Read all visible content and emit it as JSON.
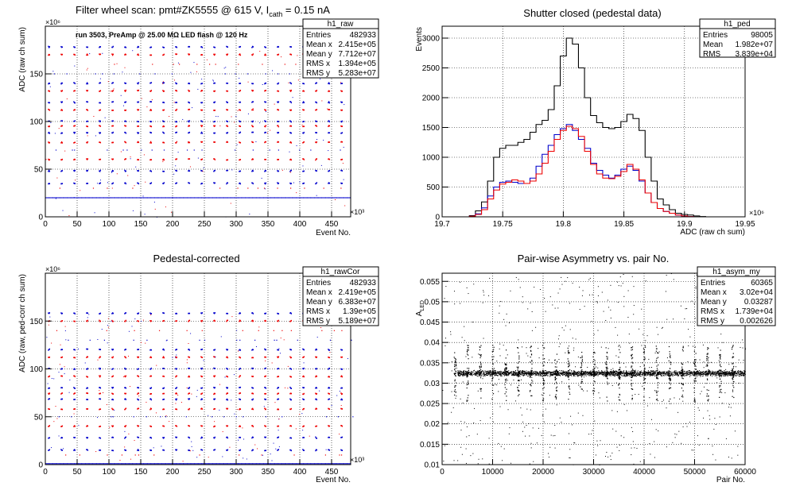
{
  "chart_data": [
    {
      "type": "scatter",
      "title_main": "Filter wheel scan: pmt#ZK5555 @   615 V, I",
      "title_sub": "cath",
      "title_tail": " = 0.15 nA",
      "annotation": "run 3503, PreAmp @ 25.00 MΩ LED flash @  120 Hz",
      "xlabel": "Event No.",
      "ylabel": "ADC (raw ch sum)",
      "x_multiplier": "×10³",
      "y_multiplier": "×10⁶",
      "xlim": [
        0,
        480
      ],
      "ylim": [
        0,
        200
      ],
      "xticks": [
        0,
        50,
        100,
        150,
        200,
        250,
        300,
        350,
        400,
        450
      ],
      "yticks": [
        0,
        50,
        100,
        150
      ],
      "grid": true,
      "stats": {
        "name": "h1_raw",
        "rows": [
          [
            "Entries",
            "482933"
          ],
          [
            "Mean x",
            "2.415e+05"
          ],
          [
            "Mean y",
            "7.712e+07"
          ],
          [
            "RMS x",
            "1.394e+05"
          ],
          [
            "RMS y",
            "5.283e+07"
          ]
        ]
      },
      "period": 20,
      "band_levels": [
        {
          "y": 178,
          "color": "#0000cc",
          "pattern": "burst"
        },
        {
          "y": 170,
          "color": "#ee0000",
          "pattern": "burst"
        },
        {
          "y": 160,
          "color": "#ee0000",
          "pattern": "sparse"
        },
        {
          "y": 150,
          "color": "#0000cc",
          "pattern": "sparse"
        },
        {
          "y": 140,
          "color": "#0000cc",
          "pattern": "burst"
        },
        {
          "y": 132,
          "color": "#ee0000",
          "pattern": "burst"
        },
        {
          "y": 120,
          "color": "#0000cc",
          "pattern": "burst"
        },
        {
          "y": 112,
          "color": "#ee0000",
          "pattern": "burst"
        },
        {
          "y": 100,
          "color": "#0000cc",
          "pattern": "burst"
        },
        {
          "y": 95,
          "color": "#ee0000",
          "pattern": "burst"
        },
        {
          "y": 88,
          "color": "#0000cc",
          "pattern": "burst"
        },
        {
          "y": 78,
          "color": "#ee0000",
          "pattern": "burst"
        },
        {
          "y": 70,
          "color": "#0000cc",
          "pattern": "sparse"
        },
        {
          "y": 60,
          "color": "#ee0000",
          "pattern": "burst"
        },
        {
          "y": 48,
          "color": "#0000cc",
          "pattern": "burst"
        },
        {
          "y": 35,
          "color": "#0000cc",
          "pattern": "burst"
        },
        {
          "y": 30,
          "color": "#ee0000",
          "pattern": "sparse"
        },
        {
          "y": 20,
          "color": "#0000cc",
          "pattern": "continuous"
        }
      ]
    },
    {
      "type": "line",
      "title": "Shutter closed (pedestal data)",
      "xlabel": "ADC (raw ch sum)",
      "ylabel": "Events",
      "x_multiplier": "×10⁶",
      "xlim": [
        19.7,
        19.95
      ],
      "ylim": [
        0,
        3200
      ],
      "xticks": [
        19.7,
        19.75,
        19.8,
        19.85,
        19.9,
        19.95
      ],
      "xtick_labels": [
        "19.7",
        "19.75",
        "19.8",
        "19.85",
        "19.9",
        "19.95"
      ],
      "yticks": [
        0,
        500,
        1000,
        1500,
        2000,
        2500,
        3000
      ],
      "grid": true,
      "stats": {
        "name": "h1_ped",
        "rows": [
          [
            "Entries",
            "98005"
          ],
          [
            "Mean",
            "1.982e+07"
          ],
          [
            "RMS",
            "3.839e+04"
          ]
        ]
      },
      "series": [
        {
          "color": "#000000",
          "x": [
            19.725,
            19.73,
            19.735,
            19.74,
            19.745,
            19.75,
            19.755,
            19.76,
            19.765,
            19.77,
            19.775,
            19.78,
            19.785,
            19.79,
            19.795,
            19.8,
            19.805,
            19.81,
            19.815,
            19.82,
            19.825,
            19.83,
            19.835,
            19.84,
            19.845,
            19.85,
            19.855,
            19.86,
            19.865,
            19.87,
            19.875,
            19.88,
            19.885,
            19.89,
            19.895,
            19.9,
            19.905,
            19.91,
            19.915
          ],
          "y": [
            20,
            100,
            250,
            600,
            1000,
            1150,
            1200,
            1200,
            1250,
            1300,
            1420,
            1550,
            1620,
            1800,
            2200,
            2700,
            3000,
            2900,
            2500,
            2000,
            1700,
            1580,
            1500,
            1480,
            1500,
            1600,
            1720,
            1650,
            1450,
            1000,
            600,
            300,
            200,
            120,
            60,
            40,
            30,
            15,
            5
          ]
        },
        {
          "color": "#0000cc",
          "x": [
            19.725,
            19.73,
            19.735,
            19.74,
            19.745,
            19.75,
            19.755,
            19.76,
            19.765,
            19.77,
            19.775,
            19.78,
            19.785,
            19.79,
            19.795,
            19.8,
            19.805,
            19.81,
            19.815,
            19.82,
            19.825,
            19.83,
            19.835,
            19.84,
            19.845,
            19.85,
            19.855,
            19.86,
            19.865,
            19.87,
            19.875,
            19.88,
            19.885,
            19.89,
            19.895,
            19.9,
            19.905
          ],
          "y": [
            10,
            50,
            150,
            350,
            500,
            580,
            600,
            580,
            560,
            560,
            650,
            850,
            1050,
            1200,
            1380,
            1480,
            1550,
            1450,
            1300,
            1150,
            900,
            780,
            700,
            650,
            700,
            800,
            850,
            780,
            600,
            400,
            240,
            140,
            90,
            60,
            30,
            15,
            5
          ]
        },
        {
          "color": "#ee0000",
          "x": [
            19.725,
            19.73,
            19.735,
            19.74,
            19.745,
            19.75,
            19.755,
            19.76,
            19.765,
            19.77,
            19.775,
            19.78,
            19.785,
            19.79,
            19.795,
            19.8,
            19.805,
            19.81,
            19.815,
            19.82,
            19.825,
            19.83,
            19.835,
            19.84,
            19.845,
            19.85,
            19.855,
            19.86,
            19.865,
            19.87,
            19.875,
            19.88,
            19.885,
            19.89,
            19.895,
            19.9,
            19.905
          ],
          "y": [
            10,
            40,
            120,
            300,
            450,
            550,
            580,
            620,
            600,
            560,
            600,
            720,
            900,
            1100,
            1300,
            1450,
            1520,
            1480,
            1350,
            1100,
            880,
            720,
            650,
            640,
            680,
            760,
            880,
            800,
            620,
            400,
            240,
            140,
            90,
            60,
            30,
            15,
            5
          ]
        }
      ]
    },
    {
      "type": "scatter",
      "title": "Pedestal-corrected",
      "xlabel": "Event No.",
      "ylabel": "ADC (raw, ped-corr ch sum)",
      "x_multiplier": "×10³",
      "y_multiplier": "×10⁶",
      "xlim": [
        0,
        480
      ],
      "ylim": [
        0,
        200
      ],
      "xticks": [
        0,
        50,
        100,
        150,
        200,
        250,
        300,
        350,
        400,
        450
      ],
      "yticks": [
        0,
        50,
        100,
        150
      ],
      "grid": true,
      "stats": {
        "name": "h1_rawCor",
        "rows": [
          [
            "Entries",
            "482933"
          ],
          [
            "Mean x",
            "2.419e+05"
          ],
          [
            "Mean y",
            "6.383e+07"
          ],
          [
            "RMS x",
            "1.39e+05"
          ],
          [
            "RMS y",
            "5.189e+07"
          ]
        ]
      },
      "period": 20,
      "band_levels": [
        {
          "y": 158,
          "color": "#0000cc",
          "pattern": "burst"
        },
        {
          "y": 150,
          "color": "#ee0000",
          "pattern": "burst"
        },
        {
          "y": 140,
          "color": "#ee0000",
          "pattern": "sparse"
        },
        {
          "y": 130,
          "color": "#0000cc",
          "pattern": "sparse"
        },
        {
          "y": 120,
          "color": "#0000cc",
          "pattern": "burst"
        },
        {
          "y": 112,
          "color": "#ee0000",
          "pattern": "burst"
        },
        {
          "y": 100,
          "color": "#0000cc",
          "pattern": "burst"
        },
        {
          "y": 92,
          "color": "#ee0000",
          "pattern": "burst"
        },
        {
          "y": 80,
          "color": "#0000cc",
          "pattern": "burst"
        },
        {
          "y": 74,
          "color": "#ee0000",
          "pattern": "burst"
        },
        {
          "y": 68,
          "color": "#0000cc",
          "pattern": "burst"
        },
        {
          "y": 58,
          "color": "#ee0000",
          "pattern": "burst"
        },
        {
          "y": 50,
          "color": "#0000cc",
          "pattern": "sparse"
        },
        {
          "y": 40,
          "color": "#ee0000",
          "pattern": "burst"
        },
        {
          "y": 28,
          "color": "#0000cc",
          "pattern": "burst"
        },
        {
          "y": 15,
          "color": "#0000cc",
          "pattern": "burst"
        },
        {
          "y": 10,
          "color": "#ee0000",
          "pattern": "sparse"
        },
        {
          "y": 1,
          "color": "#0000cc",
          "pattern": "continuous"
        }
      ]
    },
    {
      "type": "scatter",
      "title": "Pair-wise Asymmetry vs. pair No.",
      "xlabel": "Pair No.",
      "ylabel": "A",
      "ylabel_sub": "LED",
      "xlim": [
        0,
        60000
      ],
      "ylim": [
        0.01,
        0.057
      ],
      "xticks": [
        0,
        10000,
        20000,
        30000,
        40000,
        50000,
        60000
      ],
      "yticks": [
        0.01,
        0.015,
        0.02,
        0.025,
        0.03,
        0.035,
        0.04,
        0.045,
        0.05,
        0.055
      ],
      "grid": true,
      "stats": {
        "name": "h1_asym_my",
        "rows": [
          [
            "Entries",
            "60365"
          ],
          [
            "Mean x",
            "3.02e+04"
          ],
          [
            "Mean y",
            "0.03287"
          ],
          [
            "RMS x",
            "1.739e+04"
          ],
          [
            "RMS y",
            "0.002626"
          ]
        ]
      },
      "band_center": 0.0325,
      "band_halfwidth": 0.0008,
      "spike_x": [
        2500,
        5000,
        7500,
        10000,
        12500,
        15000,
        17500,
        20000,
        22500,
        25000,
        27500,
        30000,
        32500,
        35000,
        37500,
        40000,
        42500,
        45000,
        47500,
        50000,
        52500,
        55000,
        57500
      ],
      "spike_top": 0.0395,
      "spike_bottom": 0.0255,
      "color": "#000000"
    }
  ]
}
